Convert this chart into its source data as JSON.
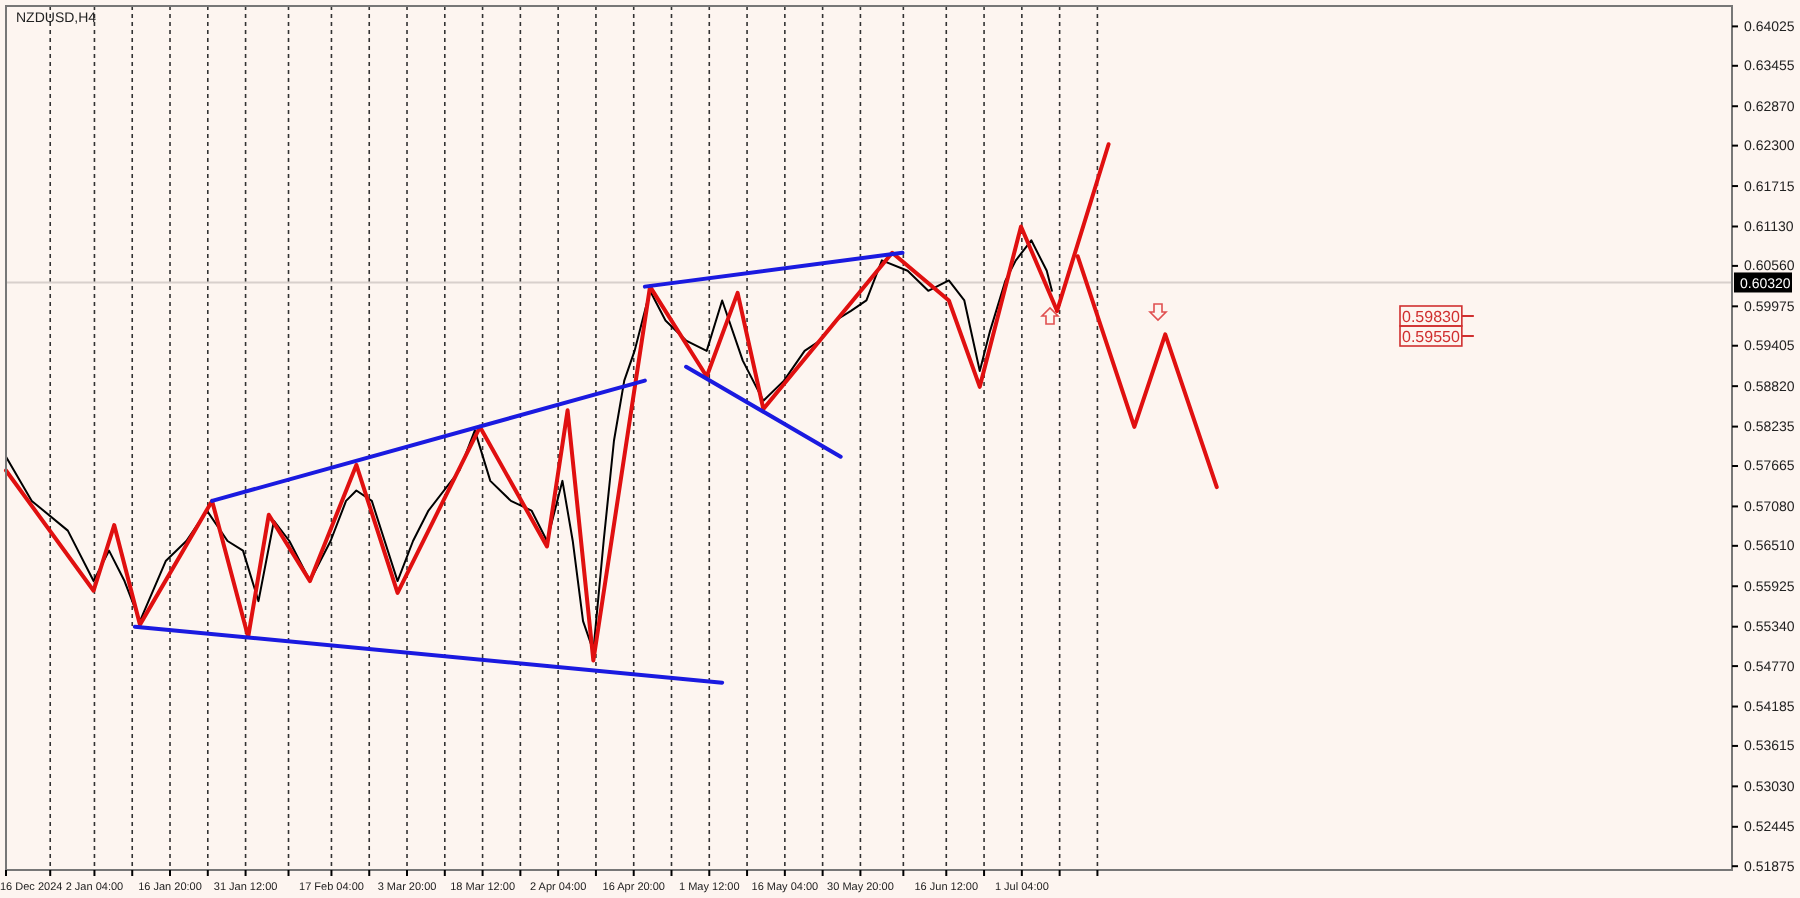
{
  "chart_data": {
    "type": "line",
    "title": "NZDUSD,H4",
    "xlim": [
      "2024-12-16",
      "2025-11-16"
    ],
    "ylim": [
      0.5182,
      0.6432
    ],
    "xticks": [
      {
        "value": "2024-12-16",
        "label": "16 Dec 2024"
      },
      {
        "value": "2024-12-24T14:00",
        "label": null
      },
      {
        "value": "2025-01-02T04:00",
        "label": "2 Jan 04:00"
      },
      {
        "value": "2025-01-09T12:00",
        "label": null
      },
      {
        "value": "2025-01-16T20:00",
        "label": "16 Jan 20:00"
      },
      {
        "value": "2025-01-24T04:00",
        "label": null
      },
      {
        "value": "2025-01-31T12:00",
        "label": "31 Jan 12:00"
      },
      {
        "value": "2025-02-08T20:00",
        "label": null
      },
      {
        "value": "2025-02-17T04:00",
        "label": "17 Feb 04:00"
      },
      {
        "value": "2025-02-24T12:00",
        "label": null
      },
      {
        "value": "2025-03-03T20:00",
        "label": "3 Mar 20:00"
      },
      {
        "value": "2025-03-11T04:00",
        "label": null
      },
      {
        "value": "2025-03-18T12:00",
        "label": "18 Mar 12:00"
      },
      {
        "value": "2025-03-25T20:00",
        "label": null
      },
      {
        "value": "2025-04-02T04:00",
        "label": "2 Apr 04:00"
      },
      {
        "value": "2025-04-09T12:00",
        "label": null
      },
      {
        "value": "2025-04-16T20:00",
        "label": "16 Apr 20:00"
      },
      {
        "value": "2025-04-24T04:00",
        "label": null
      },
      {
        "value": "2025-05-01T12:00",
        "label": "1 May 12:00"
      },
      {
        "value": "2025-05-08T20:00",
        "label": null
      },
      {
        "value": "2025-05-16T04:00",
        "label": "16 May 04:00"
      },
      {
        "value": "2025-05-23T12:00",
        "label": null
      },
      {
        "value": "2025-05-30T20:00",
        "label": "30 May 20:00"
      },
      {
        "value": "2025-06-08T04:00",
        "label": null
      },
      {
        "value": "2025-06-16T12:00",
        "label": "16 Jun 12:00"
      },
      {
        "value": "2025-06-23T20:00",
        "label": null
      },
      {
        "value": "2025-07-01T04:00",
        "label": "1 Jul 04:00"
      },
      {
        "value": "2025-07-08T12:00",
        "label": null
      },
      {
        "value": "2025-07-15T20:00",
        "label": null
      }
    ],
    "yticks": [
      {
        "value": 0.51875,
        "label": "0.51875"
      },
      {
        "value": 0.52445,
        "label": "0.52445"
      },
      {
        "value": 0.5303,
        "label": "0.53030"
      },
      {
        "value": 0.53615,
        "label": "0.53615"
      },
      {
        "value": 0.54185,
        "label": "0.54185"
      },
      {
        "value": 0.5477,
        "label": "0.54770"
      },
      {
        "value": 0.5534,
        "label": "0.55340"
      },
      {
        "value": 0.55925,
        "label": "0.55925"
      },
      {
        "value": 0.5651,
        "label": "0.56510"
      },
      {
        "value": 0.5708,
        "label": "0.57080"
      },
      {
        "value": 0.57665,
        "label": "0.57665"
      },
      {
        "value": 0.58235,
        "label": "0.58235"
      },
      {
        "value": 0.5882,
        "label": "0.58820"
      },
      {
        "value": 0.59405,
        "label": "0.59405"
      },
      {
        "value": 0.59975,
        "label": "0.59975"
      },
      {
        "value": 0.6056,
        "label": "0.60560"
      },
      {
        "value": 0.6113,
        "label": "0.61130"
      },
      {
        "value": 0.61715,
        "label": "0.61715"
      },
      {
        "value": 0.623,
        "label": "0.62300"
      },
      {
        "value": 0.6287,
        "label": "0.62870"
      },
      {
        "value": 0.63455,
        "label": "0.63455"
      },
      {
        "value": 0.64025,
        "label": "0.64025"
      }
    ],
    "grid": "x",
    "legend": false,
    "marker": "none",
    "line_style": "solid",
    "ref_lines": [
      {
        "axis": "y",
        "value": 0.6032,
        "label": "0.60320",
        "color": "#d8d0cc"
      }
    ],
    "annotations": [
      "0.59830",
      "0.59550"
    ],
    "series": [
      {
        "color": "#000000",
        "x": [
          "2024-12-16",
          "2024-12-21",
          "2024-12-28",
          "2025-01-02",
          "2025-01-05",
          "2025-01-08",
          "2025-01-11",
          "2025-01-16",
          "2025-01-20",
          "2025-01-24",
          "2025-01-28",
          "2025-01-31",
          "2025-02-03",
          "2025-02-06",
          "2025-02-09",
          "2025-02-13",
          "2025-02-17",
          "2025-02-20",
          "2025-02-22",
          "2025-02-25",
          "2025-03-02",
          "2025-03-05",
          "2025-03-08",
          "2025-03-14",
          "2025-03-17",
          "2025-03-20",
          "2025-03-24",
          "2025-03-28",
          "2025-03-31",
          "2025-04-03",
          "2025-04-05",
          "2025-04-07",
          "2025-04-09",
          "2025-04-11",
          "2025-04-13",
          "2025-04-15",
          "2025-04-17",
          "2025-04-20",
          "2025-04-23",
          "2025-04-27",
          "2025-05-01",
          "2025-05-04",
          "2025-05-08",
          "2025-05-12",
          "2025-05-16",
          "2025-05-20",
          "2025-05-23",
          "2025-05-26",
          "2025-05-29",
          "2025-06-01",
          "2025-06-04",
          "2025-06-09",
          "2025-06-13",
          "2025-06-17",
          "2025-06-20",
          "2025-06-23",
          "2025-06-25",
          "2025-06-28",
          "2025-06-30",
          "2025-07-03",
          "2025-07-06",
          "2025-07-07"
        ],
        "values": [
          0.578,
          0.5716,
          0.5673,
          0.56,
          0.5644,
          0.56,
          0.5542,
          0.5629,
          0.5658,
          0.5702,
          0.5658,
          0.5644,
          0.5571,
          0.5687,
          0.5658,
          0.56,
          0.5658,
          0.5716,
          0.5731,
          0.5716,
          0.56,
          0.5658,
          0.5702,
          0.576,
          0.5818,
          0.5745,
          0.5716,
          0.5702,
          0.5658,
          0.5745,
          0.5658,
          0.5542,
          0.5499,
          0.5658,
          0.5803,
          0.589,
          0.5933,
          0.602,
          0.5977,
          0.5948,
          0.5933,
          0.6006,
          0.5919,
          0.5861,
          0.589,
          0.5933,
          0.5948,
          0.5977,
          0.5991,
          0.6006,
          0.6064,
          0.6049,
          0.602,
          0.6035,
          0.6006,
          0.5904,
          0.5962,
          0.6035,
          0.6064,
          0.6093,
          0.6049,
          0.602
        ]
      },
      {
        "color": "#e01010",
        "x": [
          "2024-12-16",
          "2025-01-02",
          "2025-01-06",
          "2025-01-11",
          "2025-01-25",
          "2025-02-01",
          "2025-02-05",
          "2025-02-13",
          "2025-02-22",
          "2025-03-02",
          "2025-03-18",
          "2025-03-31",
          "2025-04-04",
          "2025-04-09",
          "2025-04-20",
          "2025-05-01",
          "2025-05-07",
          "2025-05-12",
          "2025-06-06",
          "2025-06-17",
          "2025-06-23",
          "2025-07-01",
          "2025-07-08"
        ],
        "values": [
          0.576,
          0.5586,
          0.5681,
          0.5537,
          0.5716,
          0.5519,
          0.5696,
          0.56,
          0.5768,
          0.5583,
          0.5823,
          0.565,
          0.5847,
          0.5485,
          0.6026,
          0.5896,
          0.6017,
          0.5849,
          0.6075,
          0.6006,
          0.5881,
          0.6113,
          0.5991
        ]
      },
      {
        "color": "#e01010",
        "x": [
          "2025-07-08",
          "2025-07-18"
        ],
        "values": [
          0.5991,
          0.6232
        ]
      },
      {
        "color": "#e01010",
        "x": [
          "2025-07-12",
          "2025-07-23",
          "2025-07-29",
          "2025-08-08"
        ],
        "values": [
          0.607,
          0.5823,
          0.5957,
          0.5736
        ]
      },
      {
        "color": "#1a1ae0",
        "x": [
          "2025-01-25",
          "2025-04-19"
        ],
        "values": [
          0.5716,
          0.589
        ]
      },
      {
        "color": "#1a1ae0",
        "x": [
          "2025-01-10",
          "2025-05-04"
        ],
        "values": [
          0.5534,
          0.5453
        ]
      },
      {
        "color": "#1a1ae0",
        "x": [
          "2025-04-19",
          "2025-06-08"
        ],
        "values": [
          0.6026,
          0.6075
        ]
      },
      {
        "color": "#1a1ae0",
        "x": [
          "2025-04-27",
          "2025-05-27"
        ],
        "values": [
          0.591,
          0.578
        ]
      }
    ]
  }
}
